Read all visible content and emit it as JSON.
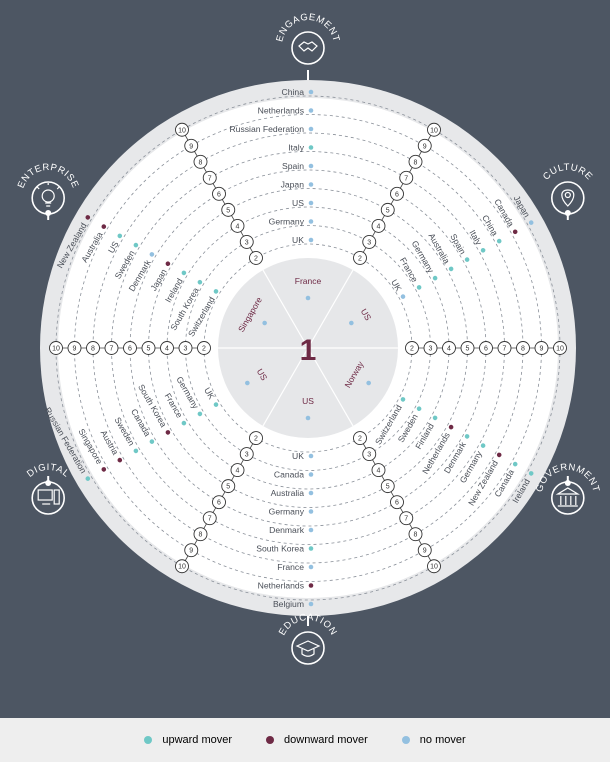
{
  "colors": {
    "background": "#4d5663",
    "ring": "#e7e8ea",
    "disk": "#ffffff",
    "center": "#e6e7e9",
    "accent": "#6e2a45",
    "up": "#6fc8c6",
    "down": "#6e2a45",
    "none": "#93c0e0",
    "line": "#ffffff",
    "legendBg": "#eeeeee"
  },
  "centerRank": "1",
  "categories": [
    {
      "id": "engagement",
      "label": "ENGAGEMENT",
      "icon": "handshake-icon"
    },
    {
      "id": "culture",
      "label": "CULTURE",
      "icon": "map-pin-icon"
    },
    {
      "id": "government",
      "label": "GOVERNMENT",
      "icon": "government-building-icon"
    },
    {
      "id": "education",
      "label": "EDUCATION",
      "icon": "graduation-cap-icon"
    },
    {
      "id": "digital",
      "label": "DIGITAL",
      "icon": "computer-icon"
    },
    {
      "id": "enterprise",
      "label": "ENTERPRISE",
      "icon": "lightbulb-icon"
    }
  ],
  "rankNumbers": [
    "2",
    "3",
    "4",
    "5",
    "6",
    "7",
    "8",
    "9",
    "10"
  ],
  "sectors": [
    {
      "id": "engagement",
      "first": {
        "name": "France",
        "trend": "none"
      },
      "others": [
        {
          "name": "UK",
          "trend": "none"
        },
        {
          "name": "Germany",
          "trend": "none"
        },
        {
          "name": "US",
          "trend": "none"
        },
        {
          "name": "Japan",
          "trend": "none"
        },
        {
          "name": "Spain",
          "trend": "none"
        },
        {
          "name": "Italy",
          "trend": "up"
        },
        {
          "name": "Russian Federation",
          "trend": "none"
        },
        {
          "name": "Netherlands",
          "trend": "none"
        },
        {
          "name": "China",
          "trend": "none"
        }
      ]
    },
    {
      "id": "culture",
      "first": {
        "name": "US",
        "trend": "none"
      },
      "others": [
        {
          "name": "UK",
          "trend": "none"
        },
        {
          "name": "France",
          "trend": "up"
        },
        {
          "name": "Germany",
          "trend": "up"
        },
        {
          "name": "Australia",
          "trend": "up"
        },
        {
          "name": "Spain",
          "trend": "up"
        },
        {
          "name": "Italy",
          "trend": "up"
        },
        {
          "name": "China",
          "trend": "up"
        },
        {
          "name": "Canada",
          "trend": "down"
        },
        {
          "name": "Japan",
          "trend": "none"
        }
      ]
    },
    {
      "id": "government",
      "first": {
        "name": "Norway",
        "trend": "none"
      },
      "others": [
        {
          "name": "Switzerland",
          "trend": "up"
        },
        {
          "name": "Sweden",
          "trend": "up"
        },
        {
          "name": "Finland",
          "trend": "up"
        },
        {
          "name": "Netherlands",
          "trend": "down"
        },
        {
          "name": "Denmark",
          "trend": "up"
        },
        {
          "name": "Germany",
          "trend": "up"
        },
        {
          "name": "New Zealand",
          "trend": "down"
        },
        {
          "name": "Canada",
          "trend": "up"
        },
        {
          "name": "Ireland",
          "trend": "up"
        }
      ]
    },
    {
      "id": "education",
      "first": {
        "name": "US",
        "trend": "none"
      },
      "others": [
        {
          "name": "UK",
          "trend": "none"
        },
        {
          "name": "Canada",
          "trend": "none"
        },
        {
          "name": "Australia",
          "trend": "none"
        },
        {
          "name": "Germany",
          "trend": "none"
        },
        {
          "name": "Denmark",
          "trend": "none"
        },
        {
          "name": "South Korea",
          "trend": "up"
        },
        {
          "name": "France",
          "trend": "none"
        },
        {
          "name": "Netherlands",
          "trend": "down"
        },
        {
          "name": "Belgium",
          "trend": "none"
        }
      ]
    },
    {
      "id": "digital",
      "first": {
        "name": "US",
        "trend": "none"
      },
      "others": [
        {
          "name": "UK",
          "trend": "up"
        },
        {
          "name": "Germany",
          "trend": "up"
        },
        {
          "name": "France",
          "trend": "up"
        },
        {
          "name": "South Korea",
          "trend": "down"
        },
        {
          "name": "Canada",
          "trend": "up"
        },
        {
          "name": "Sweden",
          "trend": "up"
        },
        {
          "name": "Austria",
          "trend": "down"
        },
        {
          "name": "Singapore",
          "trend": "down"
        },
        {
          "name": "Russian Federation",
          "trend": "up"
        }
      ]
    },
    {
      "id": "enterprise",
      "first": {
        "name": "Singapore",
        "trend": "none"
      },
      "others": [
        {
          "name": "Switzerland",
          "trend": "up"
        },
        {
          "name": "South Korea",
          "trend": "up"
        },
        {
          "name": "Ireland",
          "trend": "up"
        },
        {
          "name": "Japan",
          "trend": "down"
        },
        {
          "name": "Denmark",
          "trend": "none"
        },
        {
          "name": "Sweden",
          "trend": "up"
        },
        {
          "name": "US",
          "trend": "up"
        },
        {
          "name": "Australia",
          "trend": "down"
        },
        {
          "name": "New Zealand",
          "trend": "down"
        }
      ]
    }
  ],
  "legend": [
    {
      "label": "upward mover",
      "color": "#6fc8c6"
    },
    {
      "label": "downward mover",
      "color": "#6e2a45"
    },
    {
      "label": "no mover",
      "color": "#93c0e0"
    }
  ]
}
